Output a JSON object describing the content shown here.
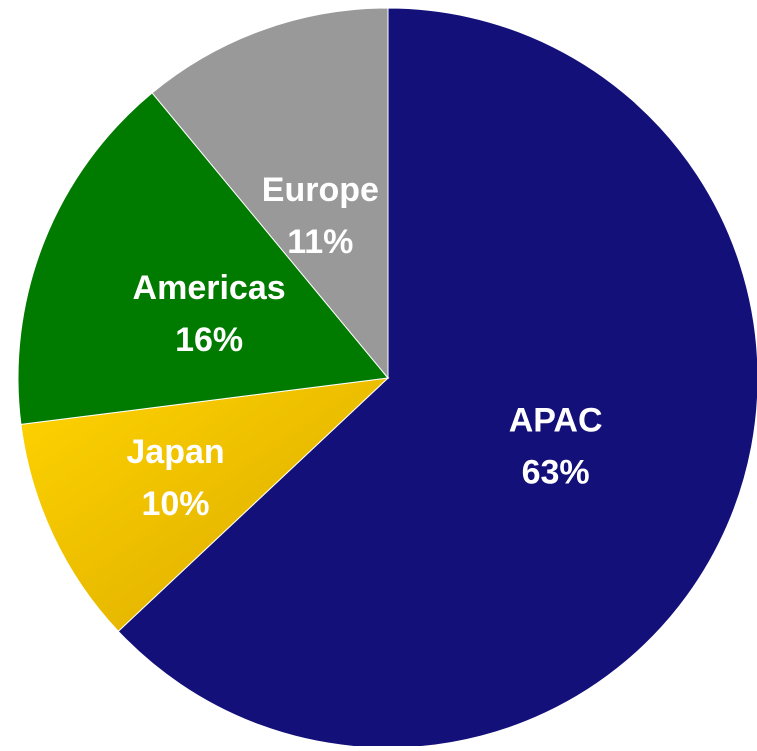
{
  "chart_data": {
    "type": "pie",
    "title": "",
    "start_angle_deg": 0,
    "direction": "clockwise",
    "slices": [
      {
        "label": "APAC",
        "value": 63,
        "value_label": "63%",
        "color": "#13107a",
        "label_color": "#ffffff"
      },
      {
        "label": "Japan",
        "value": 10,
        "value_label": "10%",
        "color": "#f2c200",
        "label_color": "#ffffff"
      },
      {
        "label": "Americas",
        "value": 16,
        "value_label": "16%",
        "color": "#007b00",
        "label_color": "#ffffff"
      },
      {
        "label": "Europe",
        "value": 11,
        "value_label": "11%",
        "color": "#999999",
        "label_color": "#ffffff"
      }
    ]
  }
}
